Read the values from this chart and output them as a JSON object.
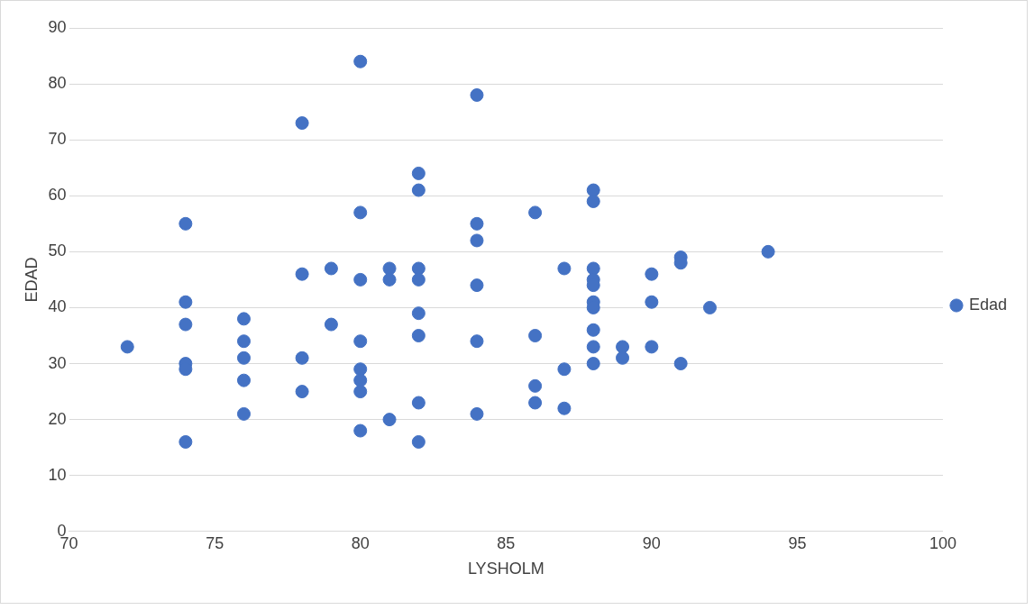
{
  "chart_data": {
    "type": "scatter",
    "xlabel": "LYSHOLM",
    "ylabel": "EDAD",
    "xlim": [
      70,
      100
    ],
    "xticks": [
      70,
      75,
      80,
      85,
      90,
      95,
      100
    ],
    "ylim": [
      0,
      90
    ],
    "yticks": [
      0,
      10,
      20,
      30,
      40,
      50,
      60,
      70,
      80,
      90
    ],
    "grid": "y",
    "legend": "right",
    "marker": "circle",
    "series": [
      {
        "name": "Edad",
        "color": "#4472c4",
        "x": [
          72,
          74,
          74,
          74,
          74,
          74,
          74,
          76,
          76,
          76,
          76,
          76,
          78,
          78,
          78,
          78,
          79,
          79,
          80,
          80,
          80,
          80,
          80,
          80,
          80,
          80,
          81,
          81,
          81,
          82,
          82,
          82,
          82,
          82,
          82,
          82,
          82,
          84,
          84,
          84,
          84,
          84,
          84,
          86,
          86,
          86,
          86,
          87,
          87,
          87,
          88,
          88,
          88,
          88,
          88,
          88,
          88,
          88,
          88,
          88,
          89,
          89,
          90,
          90,
          90,
          91,
          91,
          91,
          92,
          94
        ],
        "values": [
          33,
          55,
          41,
          37,
          30,
          29,
          16,
          38,
          34,
          31,
          27,
          21,
          73,
          46,
          31,
          25,
          47,
          37,
          84,
          57,
          45,
          34,
          29,
          27,
          25,
          18,
          47,
          45,
          20,
          64,
          61,
          47,
          45,
          39,
          35,
          23,
          16,
          78,
          55,
          52,
          44,
          34,
          21,
          57,
          35,
          26,
          23,
          47,
          29,
          22,
          61,
          59,
          47,
          45,
          44,
          41,
          40,
          36,
          33,
          30,
          33,
          31,
          46,
          41,
          33,
          49,
          48,
          30,
          40,
          50
        ]
      }
    ]
  }
}
